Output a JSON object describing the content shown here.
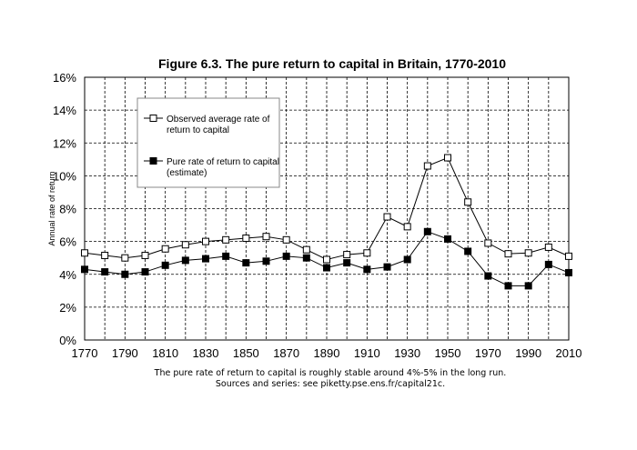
{
  "chart_data": {
    "type": "line",
    "title": "Figure 6.3. The pure return to capital in Britain, 1770-2010",
    "ylabel": "Annual rate of return",
    "xlabel": "",
    "xlim": [
      1770,
      2010
    ],
    "ylim": [
      0,
      16
    ],
    "grid": "dashed, both axes",
    "legend_position": "top-left inside plot",
    "x_ticks": [
      "1770",
      "1790",
      "1810",
      "1830",
      "1850",
      "1870",
      "1890",
      "1910",
      "1930",
      "1950",
      "1970",
      "1990",
      "2010"
    ],
    "y_ticks": [
      "0%",
      "2%",
      "4%",
      "6%",
      "8%",
      "10%",
      "12%",
      "14%",
      "16%"
    ],
    "x": [
      1770,
      1780,
      1790,
      1800,
      1810,
      1820,
      1830,
      1840,
      1850,
      1860,
      1870,
      1880,
      1890,
      1900,
      1910,
      1920,
      1930,
      1940,
      1950,
      1960,
      1970,
      1980,
      1990,
      2000,
      2010
    ],
    "series": [
      {
        "name_lines": [
          "Observed average rate of",
          "return to capital"
        ],
        "marker": "open-square",
        "values": [
          5.3,
          5.15,
          5.0,
          5.15,
          5.55,
          5.8,
          6.0,
          6.1,
          6.2,
          6.3,
          6.1,
          5.5,
          4.9,
          5.2,
          5.3,
          7.5,
          6.9,
          10.6,
          11.1,
          8.4,
          5.9,
          5.25,
          5.3,
          5.65,
          5.1
        ]
      },
      {
        "name_lines": [
          "Pure rate of return to capital",
          "(estimate)"
        ],
        "marker": "filled-square",
        "values": [
          4.3,
          4.15,
          4.0,
          4.15,
          4.55,
          4.85,
          4.95,
          5.1,
          4.7,
          4.8,
          5.1,
          5.0,
          4.4,
          4.7,
          4.3,
          4.45,
          4.9,
          6.6,
          6.15,
          5.4,
          3.9,
          3.3,
          3.3,
          4.6,
          4.1
        ]
      }
    ],
    "notes": [
      "The pure rate of return to capital is roughly stable around 4%-5% in the long run.",
      "Sources and series: see piketty.pse.ens.fr/capital21c."
    ]
  },
  "colors": {
    "line": "#000000",
    "grid": "#000000",
    "open_marker_fill": "#ffffff",
    "filled_marker_fill": "#000000"
  }
}
